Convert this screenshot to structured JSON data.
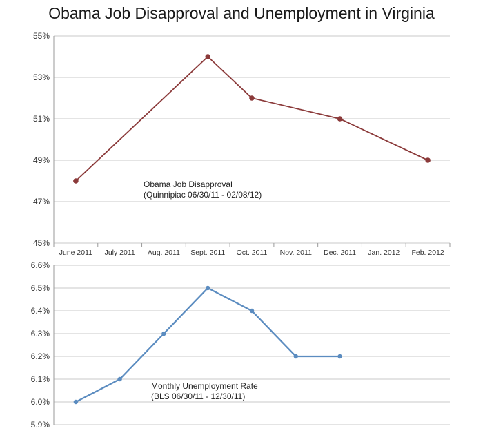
{
  "title": "Obama Job Disapproval and Unemployment in Virginia",
  "chart_data": [
    {
      "type": "line",
      "categories": [
        "June 2011",
        "July 2011",
        "Aug. 2011",
        "Sept. 2011",
        "Oct. 2011",
        "Nov. 2011",
        "Dec. 2011",
        "Jan. 2012",
        "Feb. 2012"
      ],
      "series": [
        {
          "values": [
            48,
            null,
            null,
            54,
            52,
            null,
            51,
            null,
            49
          ]
        }
      ],
      "ylim": [
        45,
        55
      ],
      "yticks": [
        "45%",
        "47%",
        "49%",
        "51%",
        "53%",
        "55%"
      ],
      "grid": true,
      "color": "#8b3a3a",
      "annotation": [
        "Obama Job Disapproval",
        "(Quinnipiac 06/30/11 - 02/08/12)"
      ]
    },
    {
      "type": "line",
      "categories": [
        "June 2011",
        "July 2011",
        "Aug. 2011",
        "Sept. 2011",
        "Oct. 2011",
        "Nov. 2011",
        "Dec. 2011",
        "Jan. 2012",
        "Feb. 2012"
      ],
      "series": [
        {
          "values": [
            6.0,
            6.1,
            6.3,
            6.5,
            6.4,
            6.2,
            6.2,
            null,
            null
          ]
        }
      ],
      "ylim": [
        5.9,
        6.6
      ],
      "yticks": [
        "5.9%",
        "6.0%",
        "6.1%",
        "6.2%",
        "6.3%",
        "6.4%",
        "6.5%",
        "6.6%"
      ],
      "grid": true,
      "color": "#5b8cc0",
      "annotation": [
        "Monthly Unemployment Rate",
        "(BLS 06/30/11 - 12/30/11)"
      ]
    }
  ]
}
